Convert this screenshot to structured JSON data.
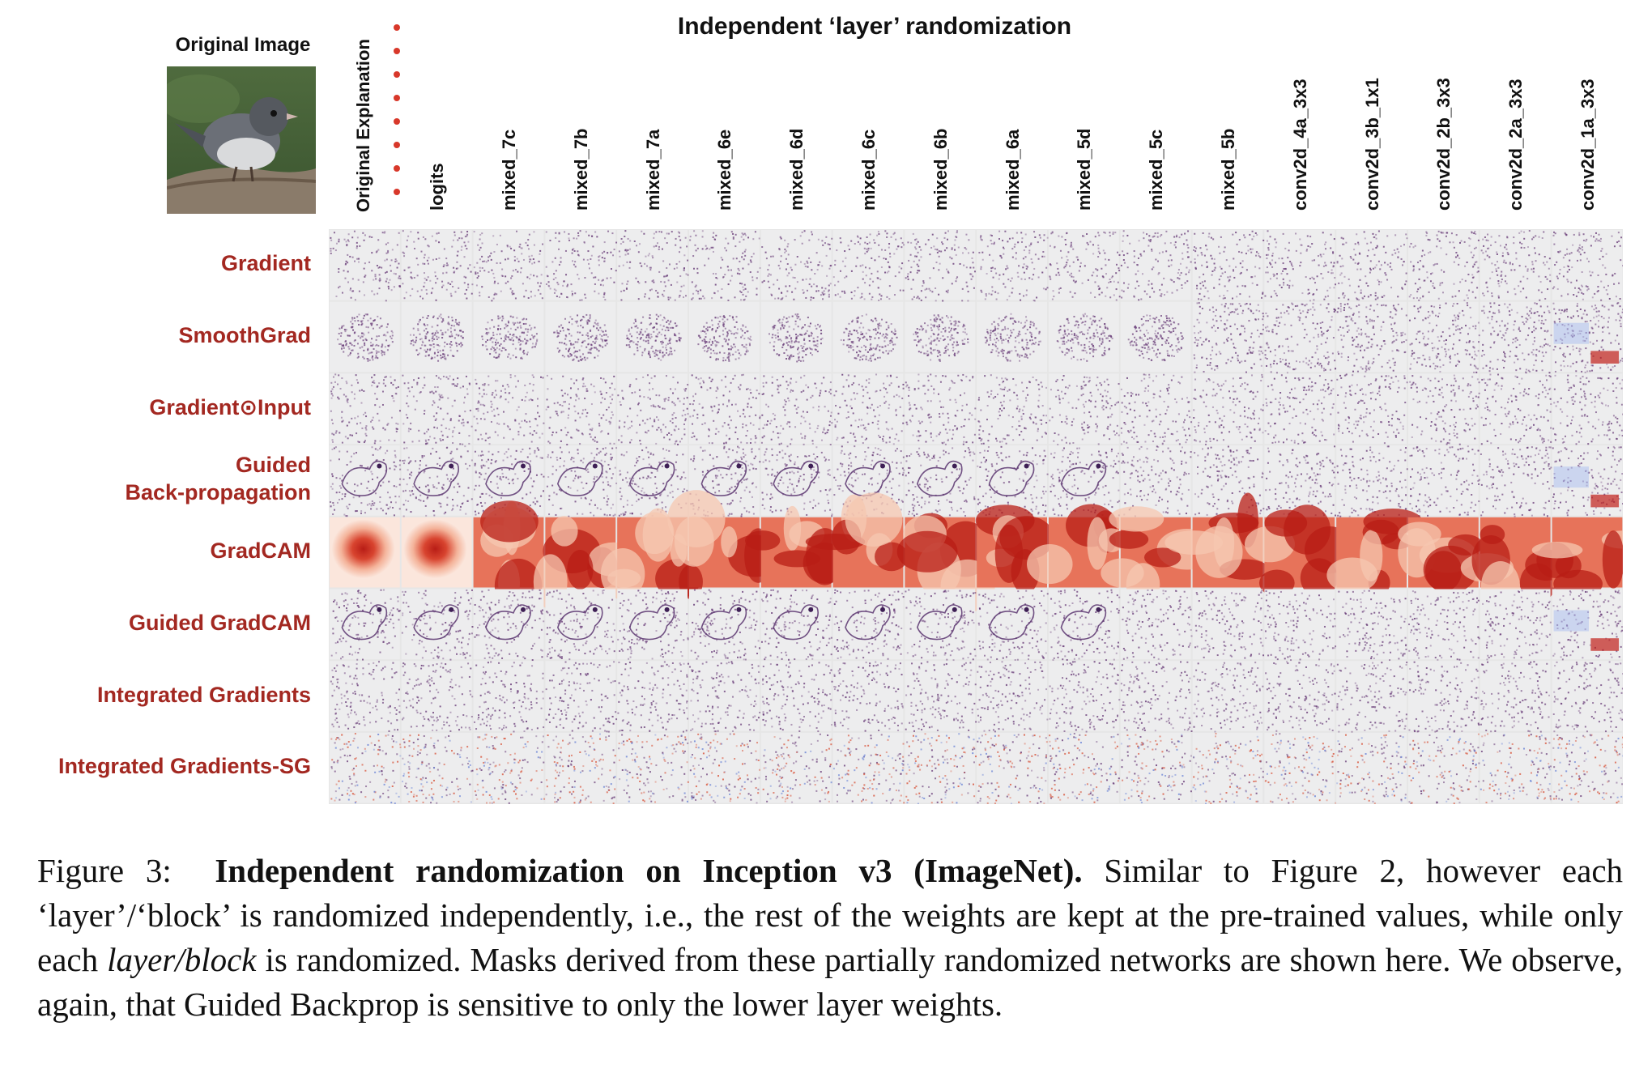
{
  "original_image_title": "Original Image",
  "top_title": "Independent ‘layer’ randomization",
  "original_explanation_label": "Original Explanation",
  "columns": [
    "logits",
    "mixed_7c",
    "mixed_7b",
    "mixed_7a",
    "mixed_6e",
    "mixed_6d",
    "mixed_6c",
    "mixed_6b",
    "mixed_6a",
    "mixed_5d",
    "mixed_5c",
    "mixed_5b",
    "conv2d_4a_3x3",
    "conv2d_3b_1x1",
    "conv2d_2b_3x3",
    "conv2d_2a_3x3",
    "conv2d_1a_3x3"
  ],
  "rows": [
    {
      "label": "Gradient",
      "style": "noise"
    },
    {
      "label": "SmoothGrad",
      "style": "blob"
    },
    {
      "label": "Gradient⊙Input",
      "style": "noise"
    },
    {
      "label": "Guided\nBack-propagation",
      "style": "outline"
    },
    {
      "label": "GradCAM",
      "style": "heat"
    },
    {
      "label": "Guided GradCAM",
      "style": "outline"
    },
    {
      "label": "Integrated Gradients",
      "style": "noise"
    },
    {
      "label": "Integrated Gradients-SG",
      "style": "mixed"
    }
  ],
  "colors": {
    "row_label": "#a32821",
    "dot": "#d8382a",
    "heat_high": "#c0201a",
    "heat_low": "#fbe6dc",
    "noise": "#6b3f7a"
  },
  "caption": {
    "figure_label": "Figure 3:",
    "bold_title": "Independent randomization on Inception v3 (ImageNet).",
    "text_1": "Similar to Figure 2, however each ‘layer’/‘block’ is randomized independently, i.e., the rest of the weights are kept at the pre-trained values, while only each",
    "italic": "layer/block",
    "text_2": "is randomized. Masks derived from these partially randomized networks are shown here. We observe, again, that Guided Backprop is sensitive to only the lower layer weights."
  }
}
